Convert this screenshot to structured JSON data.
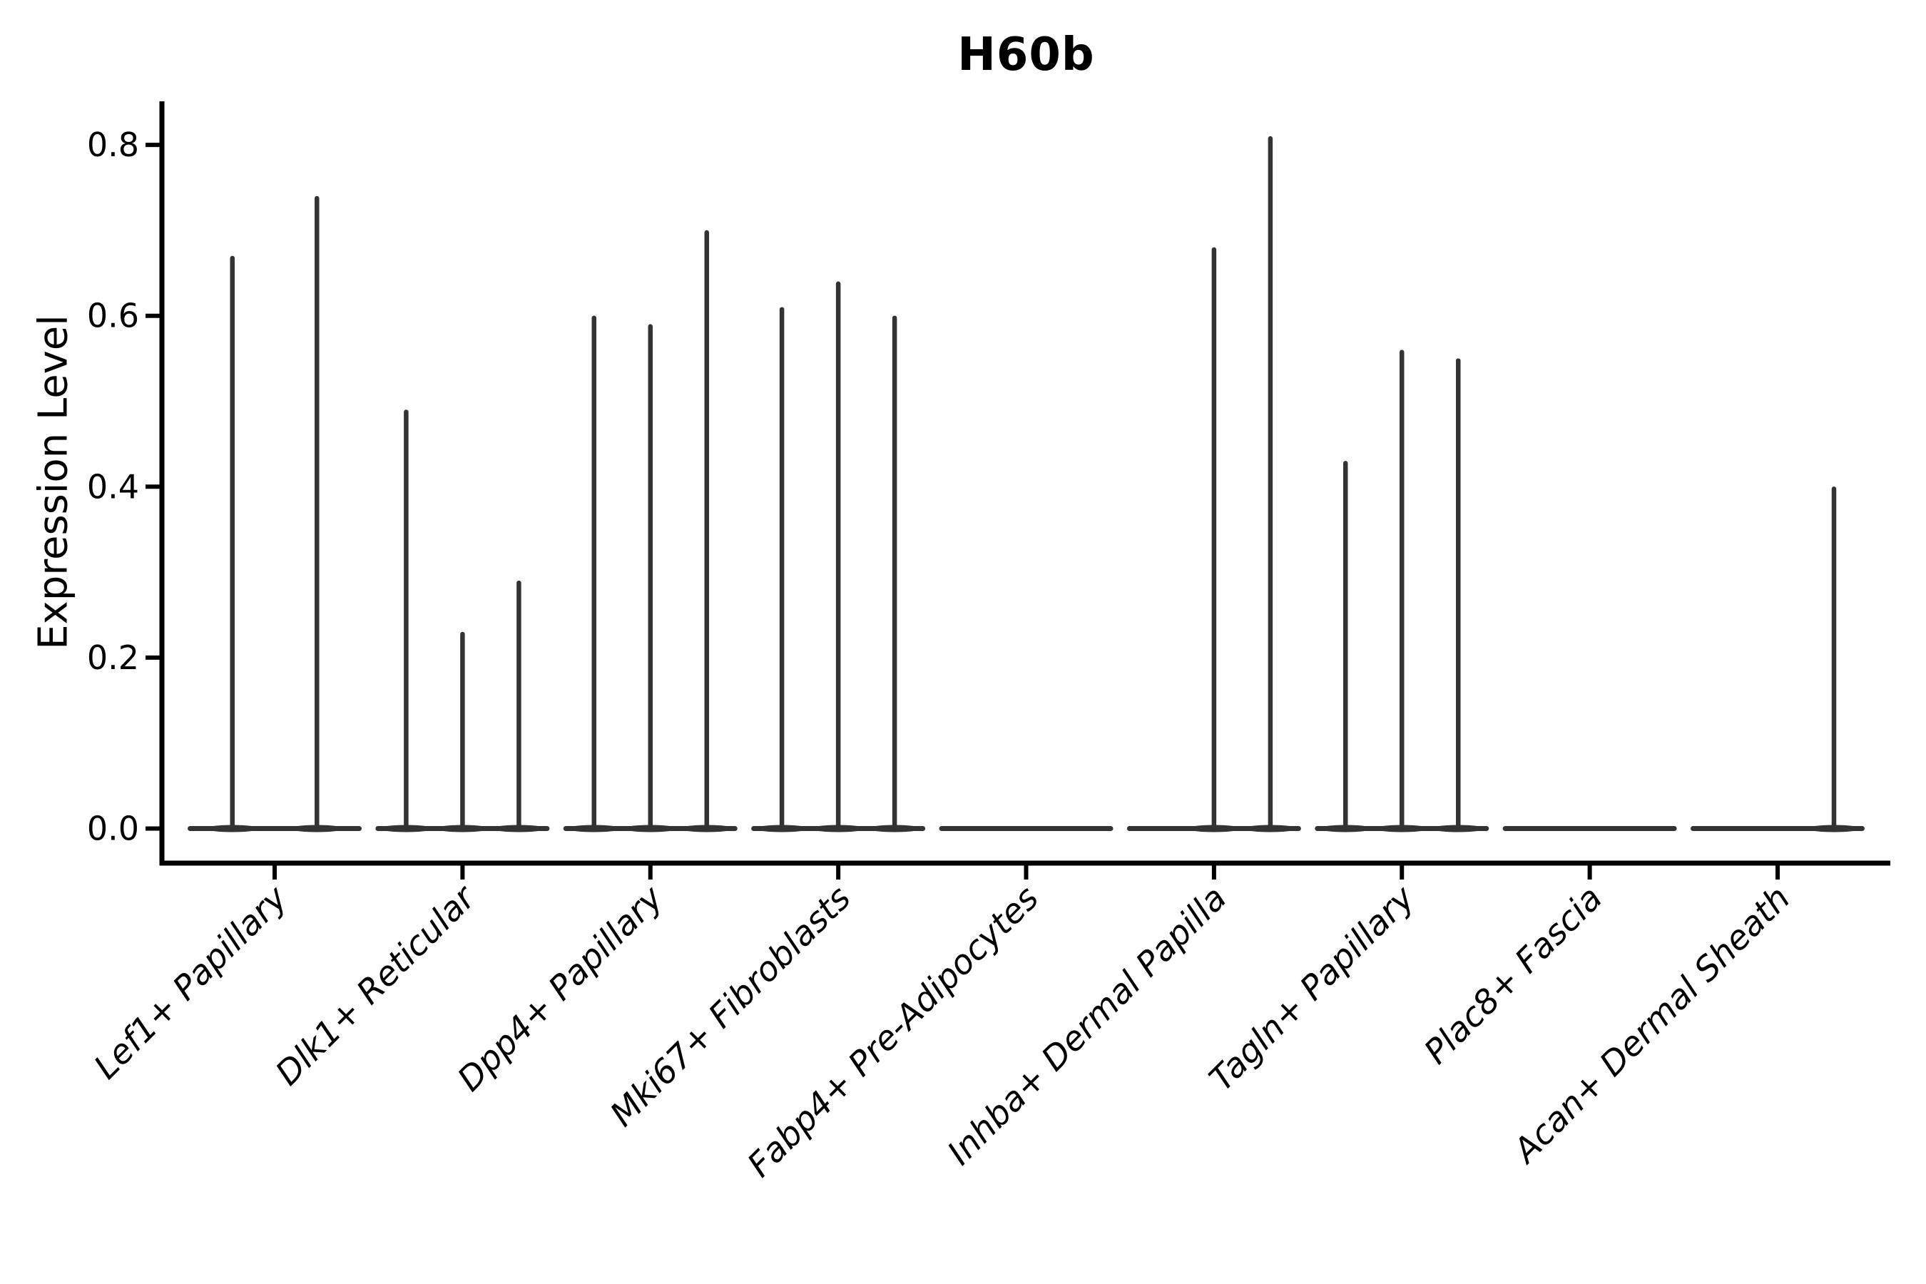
{
  "title": "H60b",
  "chart_data": {
    "type": "violin",
    "title": "H60b",
    "xlabel": "",
    "ylabel": "Expression Level",
    "ylim": [
      -0.04,
      0.85
    ],
    "yticks": [
      0,
      0.2,
      0.4,
      0.6,
      0.8
    ],
    "ytick_labels": [
      "0.0",
      "0.2",
      "0.4",
      "0.6",
      "0.8"
    ],
    "grid": false,
    "legend": "none",
    "categories": [
      "Lef1+ Papillary",
      "Dlk1+ Reticular",
      "Dpp4+ Papillary",
      "Mki67+ Fibroblasts",
      "Fabp4+ Pre-Adipocytes",
      "Inhba+ Dermal Papilla",
      "Tagln+ Papillary",
      "Plac8+ Fascia",
      "Acan+ Dermal Sheath"
    ],
    "series": [
      {
        "category": "Lef1+ Papillary",
        "violins": [
          {
            "offset": -0.225,
            "max": 0.67
          },
          {
            "offset": 0.225,
            "max": 0.74
          }
        ]
      },
      {
        "category": "Dlk1+ Reticular",
        "violins": [
          {
            "offset": -0.3,
            "max": 0.49
          },
          {
            "offset": 0,
            "max": 0.23
          },
          {
            "offset": 0.3,
            "max": 0.29
          }
        ]
      },
      {
        "category": "Dpp4+ Papillary",
        "violins": [
          {
            "offset": -0.3,
            "max": 0.6
          },
          {
            "offset": 0,
            "max": 0.59
          },
          {
            "offset": 0.3,
            "max": 0.7
          }
        ]
      },
      {
        "category": "Mki67+ Fibroblasts",
        "violins": [
          {
            "offset": -0.3,
            "max": 0.61
          },
          {
            "offset": 0,
            "max": 0.64
          },
          {
            "offset": 0.3,
            "max": 0.6
          }
        ]
      },
      {
        "category": "Fabp4+ Pre-Adipocytes",
        "violins": []
      },
      {
        "category": "Inhba+ Dermal Papilla",
        "violins": [
          {
            "offset": 0,
            "max": 0.68
          },
          {
            "offset": 0.3,
            "max": 0.81
          }
        ]
      },
      {
        "category": "Tagln+ Papillary",
        "violins": [
          {
            "offset": -0.3,
            "max": 0.43
          },
          {
            "offset": 0,
            "max": 0.56
          },
          {
            "offset": 0.3,
            "max": 0.55
          }
        ]
      },
      {
        "category": "Plac8+ Fascia",
        "violins": []
      },
      {
        "category": "Acan+ Dermal Sheath",
        "violins": [
          {
            "offset": 0.3,
            "max": 0.4
          }
        ]
      }
    ],
    "style": {
      "violin_color": "#333333",
      "axis_color": "#000000",
      "text_color": "#000000",
      "background": "#ffffff",
      "xlabel_style": "italic",
      "xlabel_rotation_deg": 45
    }
  }
}
